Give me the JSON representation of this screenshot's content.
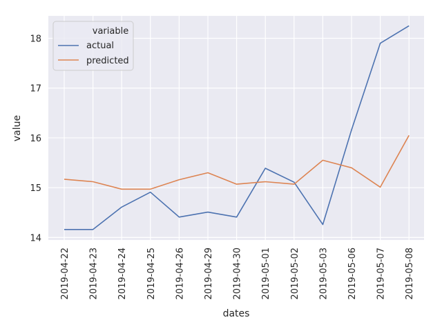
{
  "chart_data": {
    "type": "line",
    "x": [
      "2019-04-22",
      "2019-04-23",
      "2019-04-24",
      "2019-04-25",
      "2019-04-26",
      "2019-04-29",
      "2019-04-30",
      "2019-05-01",
      "2019-05-02",
      "2019-05-03",
      "2019-05-06",
      "2019-05-07",
      "2019-05-08"
    ],
    "series": [
      {
        "name": "actual",
        "color": "#4c72b0",
        "values": [
          14.16,
          14.16,
          14.61,
          14.91,
          14.41,
          14.51,
          14.41,
          15.39,
          15.11,
          14.26,
          16.16,
          17.9,
          18.25
        ]
      },
      {
        "name": "predicted",
        "color": "#dd8452",
        "values": [
          15.17,
          15.12,
          14.97,
          14.97,
          15.16,
          15.3,
          15.07,
          15.12,
          15.07,
          15.55,
          15.4,
          15.01,
          16.05
        ]
      }
    ],
    "xlabel": "dates",
    "ylabel": "value",
    "yticks": [
      14,
      15,
      16,
      17,
      18
    ],
    "ylim": [
      13.95,
      18.45
    ],
    "legend": {
      "title": "variable",
      "position": "top-left"
    },
    "grid": true,
    "background": "#eaeaf2"
  }
}
